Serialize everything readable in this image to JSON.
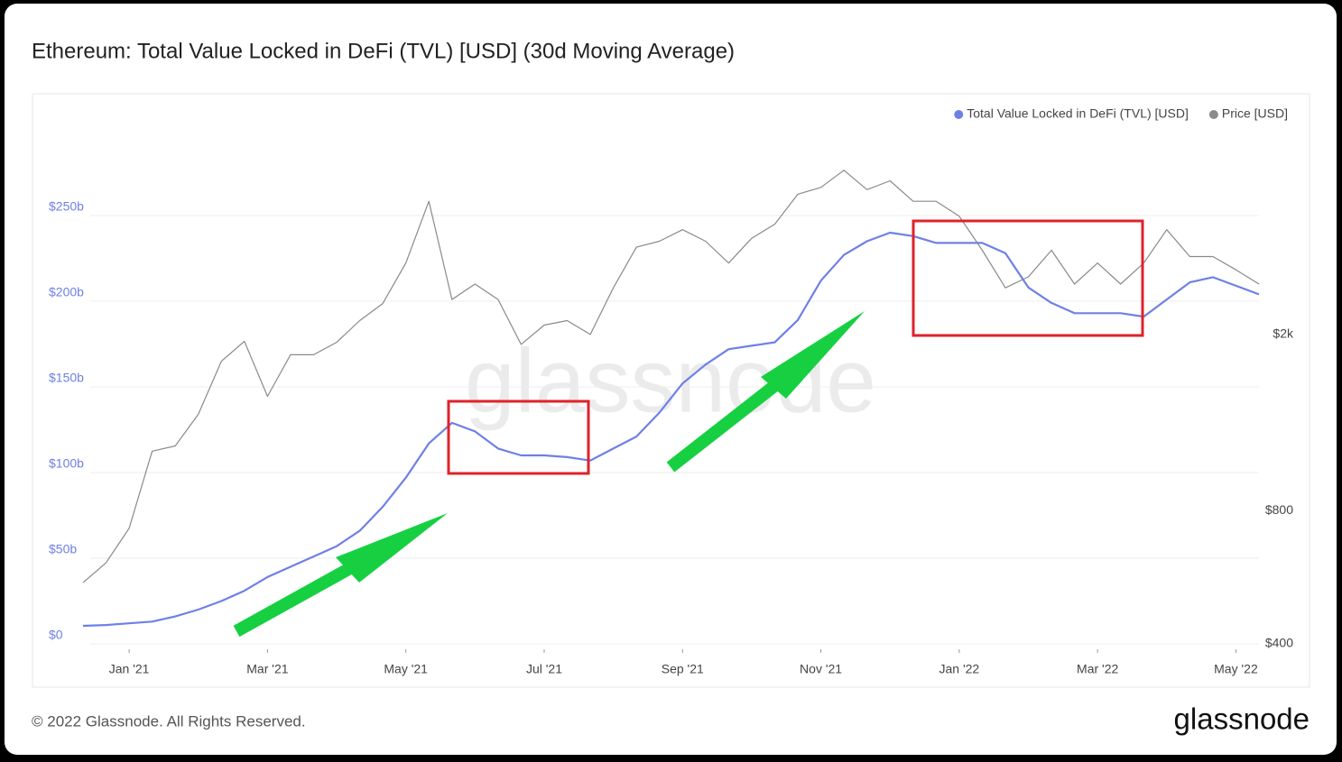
{
  "chart_data": {
    "type": "line",
    "title": "Ethereum: Total Value Locked in DeFi (TVL) [USD] (30d Moving Average)",
    "watermark": "glassnode",
    "footer": "© 2022 Glassnode. All Rights Reserved.",
    "logo": "glassnode",
    "categories": [
      null,
      null,
      "Jan '21",
      null,
      null,
      null,
      null,
      null,
      "Mar '21",
      null,
      null,
      null,
      null,
      null,
      "May '21",
      null,
      null,
      null,
      null,
      null,
      "Jul '21",
      null,
      null,
      null,
      null,
      null,
      "Sep '21",
      null,
      null,
      null,
      null,
      null,
      "Nov '21",
      null,
      null,
      null,
      null,
      null,
      "Jan '22",
      null,
      null,
      null,
      null,
      null,
      "Mar '22",
      null,
      null,
      null,
      null,
      null,
      "May '22",
      null
    ],
    "series": [
      {
        "name": "Total Value Locked in DeFi (TVL) [USD]",
        "color": "#6e80e6",
        "axis": "y",
        "values": [
          10.5,
          11,
          12,
          13,
          16,
          20,
          25,
          31,
          39,
          45,
          51,
          57,
          66,
          80,
          97,
          117,
          129,
          124,
          114,
          110,
          110,
          109,
          107,
          114,
          121,
          135,
          152,
          163,
          172,
          174,
          176,
          189,
          212,
          227,
          235,
          240,
          238,
          234,
          234,
          234,
          228,
          208,
          199,
          193,
          193,
          193,
          191,
          201,
          211,
          214,
          209,
          204
        ]
      },
      {
        "name": "Price [USD]",
        "color": "#8a8a8a",
        "axis": "y2",
        "values": [
          550,
          610,
          730,
          1090,
          1120,
          1320,
          1740,
          1930,
          1450,
          1800,
          1800,
          1920,
          2150,
          2350,
          2900,
          4000,
          2400,
          2600,
          2400,
          1900,
          2100,
          2150,
          2000,
          2550,
          3150,
          3250,
          3450,
          3250,
          2900,
          3300,
          3550,
          4150,
          4300,
          4700,
          4250,
          4450,
          4000,
          4000,
          3700,
          3100,
          2550,
          2700,
          3100,
          2600,
          2900,
          2600,
          2900,
          3450,
          3000,
          3000,
          2800,
          2600
        ]
      }
    ],
    "ylim": [
      0,
      300
    ],
    "yticks": [
      {
        "value": 0,
        "label": "$0"
      },
      {
        "value": 50,
        "label": "$50b"
      },
      {
        "value": 100,
        "label": "$100b"
      },
      {
        "value": 150,
        "label": "$150b"
      },
      {
        "value": 200,
        "label": "$200b"
      },
      {
        "value": 250,
        "label": "$250b"
      }
    ],
    "y2lim": [
      400,
      5800
    ],
    "y2ticks": [
      {
        "value": 400,
        "label": "$400"
      },
      {
        "value": 800,
        "label": "$800"
      },
      {
        "value": 2000,
        "label": "$2k"
      }
    ],
    "y2scale": "log",
    "grid": true,
    "legend": "top-right"
  }
}
